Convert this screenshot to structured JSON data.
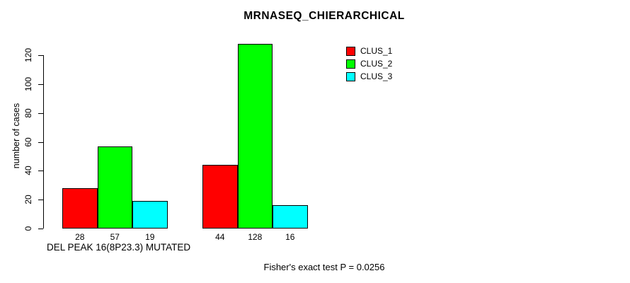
{
  "chart_data": {
    "type": "bar",
    "title": "MRNASEQ_CHIERARCHICAL",
    "ylabel": "number of cases",
    "xlabel": "DEL PEAK 16(8P23.3) MUTATED",
    "annotation": "Fisher's exact test P = 0.0256",
    "ylim": [
      0,
      120
    ],
    "yticks": [
      0,
      20,
      40,
      60,
      80,
      100,
      120
    ],
    "n_groups": 2,
    "series": [
      {
        "name": "CLUS_1",
        "color": "#FF0000",
        "values": [
          28,
          44
        ]
      },
      {
        "name": "CLUS_2",
        "color": "#00FF00",
        "values": [
          57,
          128
        ]
      },
      {
        "name": "CLUS_3",
        "color": "#00FFFF",
        "values": [
          19,
          16
        ]
      }
    ],
    "bar_value_labels": [
      [
        28,
        57,
        19
      ],
      [
        44,
        128,
        16
      ]
    ],
    "legend_position": "top-right",
    "grid": false,
    "background_color": "#ffffff",
    "axis_color": "#000000"
  }
}
